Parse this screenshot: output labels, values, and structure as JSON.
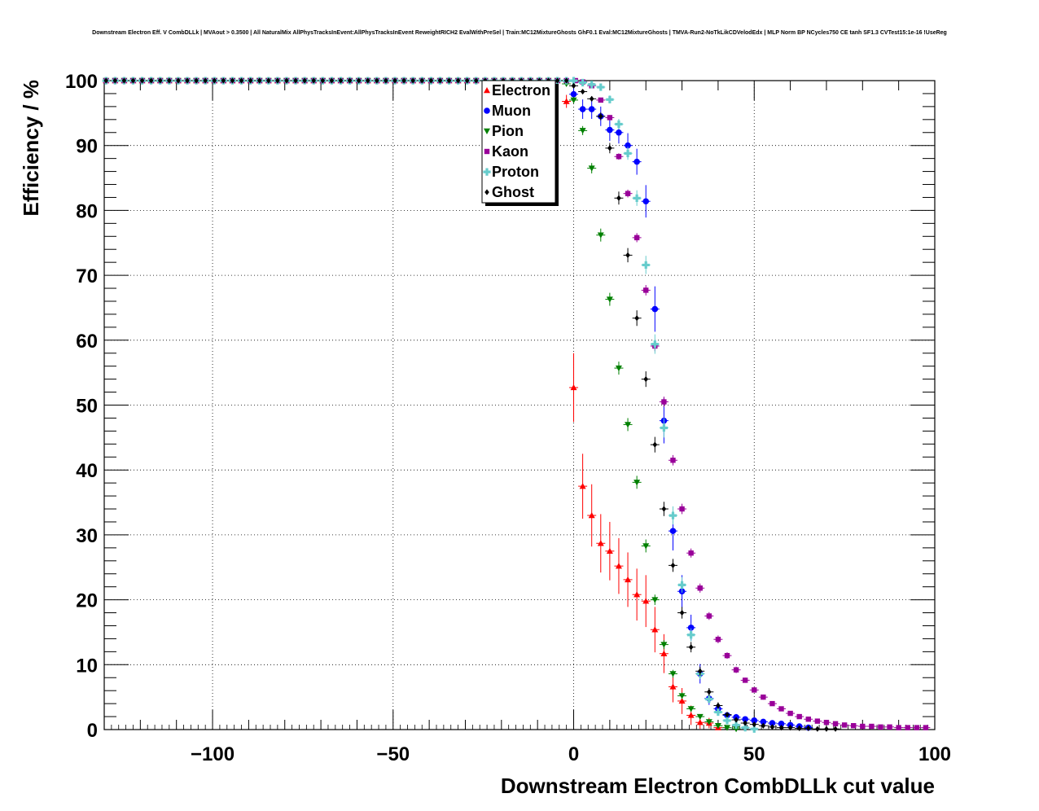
{
  "chart_data": {
    "type": "scatter",
    "title": "Downstream Electron Eff. V CombDLLk | MVAout > 0.3500 | All NaturalMix AllPhysTracksInEvent:AllPhysTracksInEvent ReweightRICH2 EvalWithPreSel | Train:MC12MixtureGhosts GhF0.1 Eval:MC12MixtureGhosts | TMVA-Run2-NoTkLikCDVelodEdx | MLP Norm BP NCycles750 CE tanh SF1.3 CVTest15:1e-16 !UseReg",
    "xlabel": "Downstream Electron CombDLLk cut value",
    "ylabel": "Efficiency / %",
    "xlim": [
      -130,
      100
    ],
    "ylim": [
      0,
      100
    ],
    "grid": true,
    "legend_position": "top-center",
    "x_ticks": [
      -100,
      -50,
      0,
      50,
      100
    ],
    "x_tick_labels": [
      "−100",
      "−50",
      "0",
      "50",
      "100"
    ],
    "y_ticks": [
      0,
      10,
      20,
      30,
      40,
      50,
      60,
      70,
      80,
      90,
      100
    ],
    "y_tick_labels": [
      "0",
      "10",
      "20",
      "30",
      "40",
      "50",
      "60",
      "70",
      "80",
      "90",
      "100"
    ],
    "series": [
      {
        "name": "Electron",
        "color": "#ff0000",
        "marker": "triangle-up",
        "x": [
          -2,
          0,
          2.5,
          5,
          7.5,
          10,
          12.5,
          15,
          17.5,
          20,
          22.5,
          25,
          27.5,
          30,
          32.5,
          35,
          37.5,
          40
        ],
        "y": [
          96.8,
          52.7,
          37.5,
          33,
          28.7,
          27.5,
          25.2,
          23.1,
          20.8,
          19.8,
          15.4,
          11.7,
          6.6,
          4.4,
          2.2,
          1.1,
          1.0,
          0.3
        ],
        "err": [
          1.0,
          5.3,
          5.0,
          4.8,
          4.5,
          4.5,
          4.3,
          4.2,
          4.0,
          4.0,
          3.5,
          3.0,
          2.4,
          2.0,
          1.5,
          1.0,
          0.8,
          0.5
        ]
      },
      {
        "name": "Muon",
        "color": "#0000ff",
        "marker": "circle",
        "x": [
          0,
          2.5,
          5,
          7.5,
          10,
          12.5,
          15,
          17.5,
          20,
          22.5,
          25,
          27.5,
          30,
          32.5,
          35,
          37.5,
          40,
          42.5,
          45,
          47.5,
          50,
          52.5,
          55,
          57.5,
          60,
          62.5,
          65
        ],
        "y": [
          97.9,
          95.6,
          95.6,
          94.5,
          92.4,
          92.0,
          90.0,
          87.5,
          81.4,
          64.8,
          47.6,
          30.6,
          21.3,
          15.7,
          8.6,
          4.8,
          3.2,
          2.2,
          1.9,
          1.6,
          1.4,
          1.2,
          1.0,
          0.9,
          0.7,
          0.5,
          0.3
        ],
        "err": [
          1.0,
          1.5,
          1.5,
          1.5,
          1.7,
          1.7,
          1.9,
          2.0,
          2.5,
          3.5,
          3.5,
          3.0,
          2.5,
          2.0,
          1.5,
          1.0,
          0.6,
          0.5,
          0.5,
          0.4,
          0.4,
          0.3,
          0.3,
          0.3,
          0.3,
          0.2,
          0.2
        ]
      },
      {
        "name": "Pion",
        "color": "#008000",
        "marker": "triangle-down",
        "x": [
          -2,
          0,
          2.5,
          5,
          7.5,
          10,
          12.5,
          15,
          17.5,
          20,
          22.5,
          25,
          27.5,
          30,
          32.5,
          35,
          37.5,
          40,
          42.5,
          45
        ],
        "y": [
          99.5,
          97,
          92.3,
          86.5,
          76.2,
          66.3,
          55.7,
          47,
          38.1,
          28.3,
          20,
          13.1,
          8.6,
          5.2,
          3.2,
          2,
          1.2,
          0.6,
          0.3,
          0.1
        ],
        "err": [
          0.3,
          0.5,
          0.7,
          0.8,
          1,
          1,
          1,
          1,
          1,
          1,
          0.8,
          0.7,
          0.6,
          0.5,
          0.4,
          0.3,
          0.2,
          0.2,
          0.1,
          0.1
        ]
      },
      {
        "name": "Kaon",
        "color": "#990099",
        "marker": "square",
        "x": [
          2.5,
          5,
          7.5,
          10,
          12.5,
          15,
          17.5,
          20,
          22.5,
          25,
          27.5,
          30,
          32.5,
          35,
          37.5,
          40,
          42.5,
          45,
          47.5,
          50,
          52.5,
          55,
          57.5,
          60,
          62.5,
          65,
          67.5,
          70,
          72.5,
          75,
          77.5,
          80,
          82.5,
          85,
          87.5,
          90,
          92.5,
          95,
          97.5
        ],
        "y": [
          99.8,
          99.2,
          97.0,
          94.3,
          88.3,
          82.6,
          75.8,
          67.7,
          59.1,
          50.5,
          41.5,
          34.0,
          27.2,
          21.8,
          17.5,
          13.9,
          11.4,
          9.2,
          7.6,
          6.1,
          5.0,
          4.0,
          3.2,
          2.5,
          2.0,
          1.6,
          1.3,
          1.1,
          0.9,
          0.7,
          0.6,
          0.5,
          0.5,
          0.4,
          0.4,
          0.3,
          0.3,
          0.3,
          0.3
        ],
        "err": [
          0.1,
          0.2,
          0.3,
          0.4,
          0.5,
          0.6,
          0.7,
          0.8,
          0.8,
          0.8,
          0.8,
          0.8,
          0.7,
          0.7,
          0.6,
          0.6,
          0.5,
          0.5,
          0.4,
          0.4,
          0.4,
          0.3,
          0.3,
          0.3,
          0.2,
          0.2,
          0.2,
          0.2,
          0.2,
          0.1,
          0.1,
          0.1,
          0.1,
          0.1,
          0.1,
          0.1,
          0.1,
          0.1,
          0.1
        ]
      },
      {
        "name": "Proton",
        "color": "#66cccc",
        "marker": "cross",
        "x": [
          0,
          2.5,
          5,
          7.5,
          10,
          12.5,
          15,
          17.5,
          20,
          22.5,
          25,
          27.5,
          30,
          32.5,
          35,
          37.5,
          40,
          42.5,
          45,
          47.5,
          50
        ],
        "y": [
          100,
          99.7,
          99.4,
          99.0,
          97.1,
          93.3,
          88.8,
          81.9,
          71.6,
          59.4,
          46.5,
          33.0,
          22.3,
          14.6,
          8.6,
          4.7,
          2.7,
          1.4,
          0.7,
          0.3,
          0.1
        ],
        "err": [
          0.1,
          0.2,
          0.3,
          0.4,
          0.6,
          0.8,
          1.0,
          1.2,
          1.4,
          1.5,
          1.5,
          1.4,
          1.2,
          1.0,
          0.8,
          0.6,
          0.4,
          0.3,
          0.2,
          0.1,
          0.1
        ]
      },
      {
        "name": "Ghost",
        "color": "#000000",
        "marker": "diamond",
        "x": [
          0,
          2.5,
          5,
          7.5,
          10,
          12.5,
          15,
          17.5,
          20,
          22.5,
          25,
          27.5,
          30,
          32.5,
          35,
          37.5,
          40,
          42.5,
          45,
          47.5,
          50,
          52.5,
          55,
          57.5,
          60,
          62.5,
          65,
          67.5,
          70,
          72.5
        ],
        "y": [
          99.2,
          98.3,
          97.2,
          94.5,
          89.6,
          81.9,
          73.1,
          63.4,
          54.0,
          43.9,
          34.0,
          25.3,
          18.0,
          12.7,
          9.0,
          5.8,
          3.7,
          2.3,
          1.5,
          1.0,
          0.8,
          0.6,
          0.4,
          0.3,
          0.3,
          0.2,
          0.2,
          0.1,
          0.1,
          0.1
        ],
        "err": [
          0.2,
          0.3,
          0.4,
          0.6,
          0.8,
          1.0,
          1.1,
          1.2,
          1.2,
          1.2,
          1.1,
          1.0,
          0.9,
          0.8,
          0.7,
          0.6,
          0.5,
          0.4,
          0.3,
          0.3,
          0.2,
          0.2,
          0.2,
          0.1,
          0.1,
          0.1,
          0.1,
          0.1,
          0.1,
          0.1
        ]
      }
    ]
  }
}
